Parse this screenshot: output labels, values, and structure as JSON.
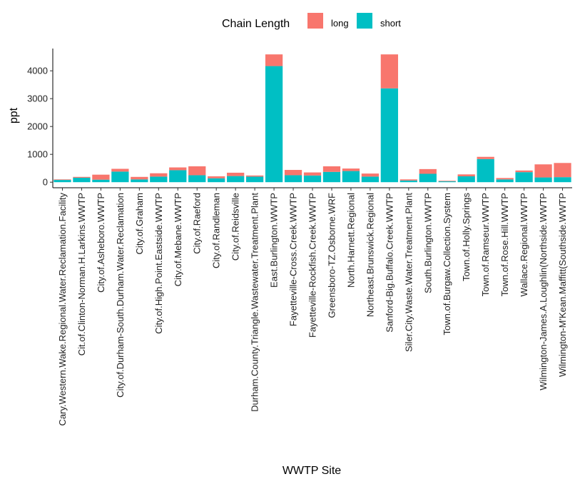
{
  "chart_data": {
    "type": "bar",
    "stacked": true,
    "xlabel": "WWTP Site",
    "ylabel": "ppt",
    "ylim": [
      -200,
      4800
    ],
    "yticks": [
      0,
      1000,
      2000,
      3000,
      4000
    ],
    "grid": false,
    "legend": {
      "title": "Chain Length",
      "placement": "top",
      "items": [
        {
          "name": "long",
          "color": "#F8766D"
        },
        {
          "name": "short",
          "color": "#00BFC4"
        }
      ]
    },
    "categories": [
      "Cary.Western.Wake.Regional.Water.Reclamation.Facility",
      "Cit.of.Clinton-Norman.H.Larkins.WWTP",
      "City.of.Asheboro.WWTP",
      "City.of.Durham-South.Durham.Water.Reclamation",
      "City.of.Graham",
      "City.of.High.Point.Eastside.WWTP",
      "City.of.Mebane.WWTP",
      "City.of.Raeford",
      "City.of.Randleman",
      "City.of.Reidsville",
      "Durham.County.Triangle.Wastewater.Treatment.Plant",
      "East.Burlington.WWTP",
      "Fayetteville-Cross.Creek.WWTP",
      "Fayetteville-Rockfish.Creek.WWTP",
      "Greensboro-TZ.Osborne.WRF",
      "North.Harnett.Regional",
      "Northeast.Brunswick.Regional",
      "Sanford-Big.Buffalo.Creek.WWTP",
      "Siler.City.Waste.Water.Treatment.Plant",
      "South.Burlington.WWTP",
      "Town.of.Burgaw.Collection.System",
      "Town.of.Holly.Springs",
      "Town.of.Ramseur.WWTP",
      "Town.of.Rose.Hill.WWTP",
      "Wallace.Regional.WWTP",
      "Wilmington-James.A.Loughlin(Northside.WWTP",
      "Wilmington-M'Kean.Maffitt(Southside.WWTP"
    ],
    "series": [
      {
        "name": "short",
        "color": "#00BFC4",
        "values": [
          80,
          160,
          90,
          380,
          100,
          200,
          430,
          250,
          140,
          220,
          200,
          4170,
          250,
          240,
          370,
          400,
          200,
          3370,
          60,
          300,
          30,
          210,
          830,
          100,
          360,
          170,
          180
        ]
      },
      {
        "name": "long",
        "color": "#F8766D",
        "values": [
          20,
          30,
          180,
          100,
          90,
          120,
          100,
          320,
          70,
          120,
          40,
          420,
          190,
          110,
          200,
          90,
          110,
          1220,
          40,
          170,
          20,
          70,
          80,
          50,
          60,
          470,
          510
        ]
      }
    ]
  }
}
